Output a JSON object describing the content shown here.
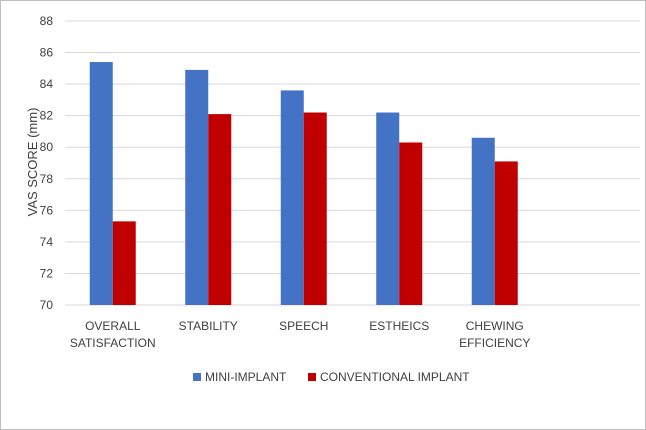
{
  "chart_data": {
    "type": "bar",
    "title": "",
    "xlabel": "",
    "ylabel": "VAS SCORE (mm)",
    "ylim": [
      70,
      88
    ],
    "yticks": [
      70,
      72,
      74,
      76,
      78,
      80,
      82,
      84,
      86,
      88
    ],
    "grid": true,
    "legend_position": "bottom",
    "categories": [
      [
        "OVERALL",
        "SATISFACTION"
      ],
      [
        "STABILITY"
      ],
      [
        "SPEECH"
      ],
      [
        "ESTHEICS"
      ],
      [
        "CHEWING",
        "EFFICIENCY"
      ]
    ],
    "series": [
      {
        "name": "MINI-IMPLANT",
        "color": "#4472C4",
        "values": [
          85.4,
          84.9,
          83.6,
          82.2,
          80.6
        ]
      },
      {
        "name": "CONVENTIONAL IMPLANT",
        "color": "#C00000",
        "values": [
          75.3,
          82.1,
          82.2,
          80.3,
          79.1
        ]
      }
    ]
  }
}
